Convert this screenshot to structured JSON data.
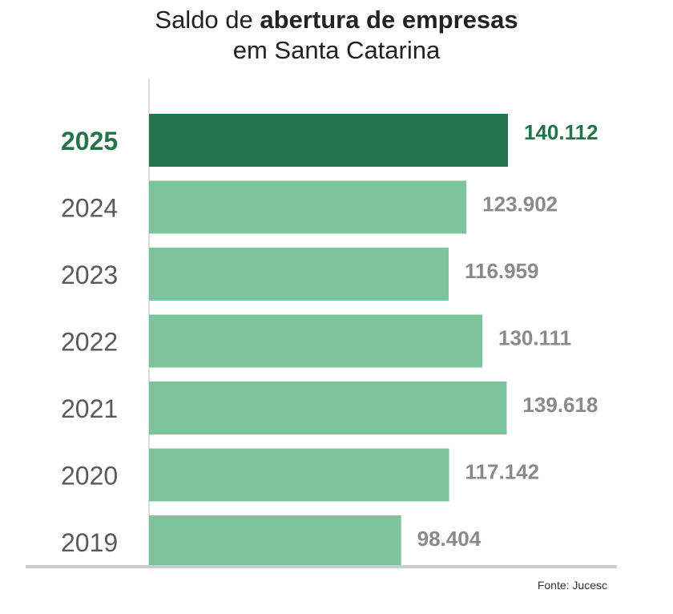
{
  "title": {
    "prefix": "Saldo de ",
    "bold": "abertura de empresas",
    "line2": "em Santa Catarina"
  },
  "source": "Fonte: Jucesc",
  "colors": {
    "highlight_bar": "#23744B",
    "normal_bar": "#7CC49C",
    "highlight_text": "#23744B",
    "normal_label": "#5a5a5a",
    "value_text": "#8a8a8a",
    "axis_line": "#dddddd",
    "baseline": "#cccccc"
  },
  "chart_data": {
    "type": "bar",
    "orientation": "horizontal",
    "title": "Saldo de abertura de empresas em Santa Catarina",
    "categories": [
      "2025",
      "2024",
      "2023",
      "2022",
      "2021",
      "2020",
      "2019"
    ],
    "values": [
      140112,
      123902,
      116959,
      130111,
      139618,
      117142,
      98404
    ],
    "value_labels": [
      "140.112",
      "123.902",
      "116.959",
      "130.111",
      "139.618",
      "117.142",
      "98.404"
    ],
    "highlight_category": "2025",
    "xlim": [
      0,
      140112
    ],
    "grid": false,
    "legend": "none"
  }
}
